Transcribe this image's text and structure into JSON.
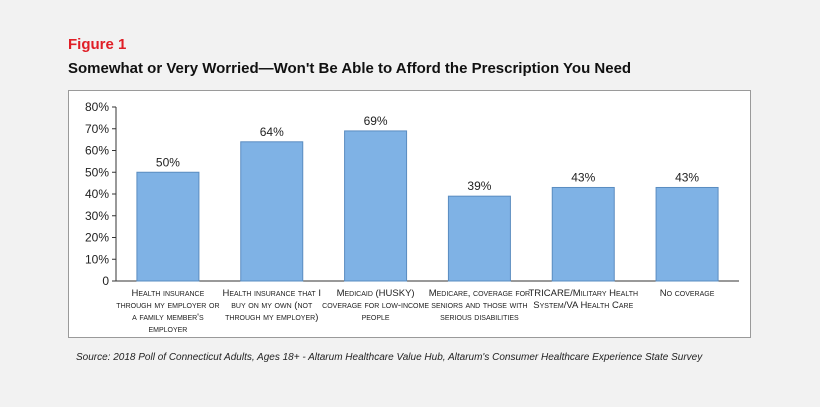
{
  "figure": {
    "label": "Figure 1",
    "title": "Somewhat or Very Worried—Won't Be Able to Afford the Prescription You Need",
    "source": "Source: 2018 Poll of Connecticut Adults, Ages 18+ - Altarum Healthcare Value Hub, Altarum's Consumer Healthcare Experience State Survey"
  },
  "colors": {
    "bar": "#7fb2e5",
    "bar_edge": "#5a8cc0",
    "accent": "#e01e26"
  },
  "chart_data": {
    "type": "bar",
    "title": "Somewhat or Very Worried—Won't Be Able to Afford the Prescription You Need",
    "xlabel": "",
    "ylabel": "",
    "ylim": [
      0,
      80
    ],
    "yticks": [
      "0",
      "10%",
      "20%",
      "30%",
      "40%",
      "50%",
      "60%",
      "70%",
      "80%"
    ],
    "categories": [
      "Health insurance through my employer or a family member's employer",
      "Health insurance that I buy on my own (not through my employer)",
      "Medicaid (HUSKY) coverage for low-income people",
      "Medicare, coverage for seniors and those with serious disabilities",
      "TRICARE/Military Health System/VA Health Care",
      "No coverage"
    ],
    "values": [
      50,
      64,
      69,
      39,
      43,
      43
    ],
    "value_labels": [
      "50%",
      "64%",
      "69%",
      "39%",
      "43%",
      "43%"
    ],
    "grid": false,
    "legend": "none"
  }
}
